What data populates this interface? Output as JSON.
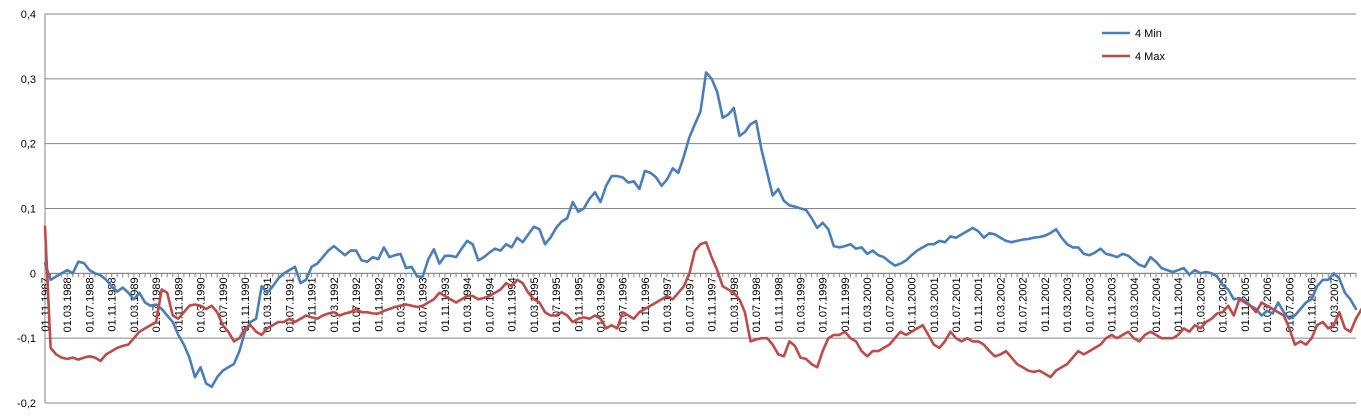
{
  "chart_data": {
    "type": "line",
    "title": "",
    "xlabel": "",
    "ylabel": "",
    "ylim": [
      -0.2,
      0.4
    ],
    "y_ticks": [
      -0.2,
      -0.1,
      0,
      0.1,
      0.2,
      0.3,
      0.4
    ],
    "y_tick_labels": [
      "-0,2",
      "-0,1",
      "0",
      "0,1",
      "0,2",
      "0,3",
      "0,4"
    ],
    "grid": "horizontal",
    "legend_position": "top-right",
    "x_tick_labels": [
      "01.11.1987",
      "01.03.1988",
      "01.07.1988",
      "01.11.1988",
      "01.03.1989",
      "01.07.1989",
      "01.11.1989",
      "01.03.1990",
      "01.07.1990",
      "01.11.1990",
      "01.03.1991",
      "01.07.1991",
      "01.11.1991",
      "01.03.1992",
      "01.07.1992",
      "01.11.1992",
      "01.03.1993",
      "01.07.1993",
      "01.11.1993",
      "01.03.1994",
      "01.07.1994",
      "01.11.1994",
      "01.03.1995",
      "01.07.1995",
      "01.11.1995",
      "01.03.1996",
      "01.07.1996",
      "01.11.1996",
      "01.03.1997",
      "01.07.1997",
      "01.11.1997",
      "01.03.1998",
      "01.07.1998",
      "01.11.1998",
      "01.03.1999",
      "01.07.1999",
      "01.11.1999",
      "01.03.2000",
      "01.07.2000",
      "01.11.2000",
      "01.03.2001",
      "01.07.2001",
      "01.11.2001",
      "01.03.2002",
      "01.07.2002",
      "01.11.2002",
      "01.03.2003",
      "01.07.2003",
      "01.11.2003",
      "01.03.2004",
      "01.07.2004",
      "01.11.2004",
      "01.03.2005",
      "01.07.2005",
      "01.11.2005",
      "01.03.2006",
      "01.07.2006",
      "01.11.2006",
      "01.03.2007"
    ],
    "x_month_labels": [
      "1987-11",
      "1988-03",
      "1988-07",
      "1988-11",
      "1989-03",
      "1989-07",
      "1989-11",
      "1990-03",
      "1990-07",
      "1990-11",
      "1991-03",
      "1991-07",
      "1991-11",
      "1992-03",
      "1992-07",
      "1992-11",
      "1993-03",
      "1993-07",
      "1993-11",
      "1994-03",
      "1994-07",
      "1994-11",
      "1995-03",
      "1995-07",
      "1995-11",
      "1996-03",
      "1996-07",
      "1996-11",
      "1997-03",
      "1997-07",
      "1997-11",
      "1998-03",
      "1998-07",
      "1998-11",
      "1999-03",
      "1999-07",
      "1999-11",
      "2000-03",
      "2000-07",
      "2000-11",
      "2001-03",
      "2001-07",
      "2001-11",
      "2002-03",
      "2002-07",
      "2002-11",
      "2003-03",
      "2003-07",
      "2003-11",
      "2004-03",
      "2004-07",
      "2004-11",
      "2005-03",
      "2005-07",
      "2005-11",
      "2006-03",
      "2006-07",
      "2006-11",
      "2007-03"
    ],
    "series": [
      {
        "name": "4 Min",
        "color": "#4a7ebb",
        "values": [
          0.015,
          -0.01,
          -0.005,
          0.0,
          0.005,
          0.0,
          0.018,
          0.016,
          0.005,
          0.0,
          -0.003,
          -0.01,
          -0.02,
          -0.028,
          -0.022,
          -0.03,
          -0.04,
          -0.03,
          -0.045,
          -0.05,
          -0.048,
          -0.055,
          -0.065,
          -0.075,
          -0.095,
          -0.11,
          -0.13,
          -0.16,
          -0.145,
          -0.17,
          -0.175,
          -0.16,
          -0.15,
          -0.145,
          -0.14,
          -0.12,
          -0.09,
          -0.075,
          -0.07,
          -0.02,
          -0.03,
          -0.02,
          -0.008,
          0.0,
          0.005,
          0.01,
          -0.015,
          -0.01,
          0.01,
          0.015,
          0.025,
          0.035,
          0.042,
          0.035,
          0.028,
          0.035,
          0.035,
          0.02,
          0.018,
          0.025,
          0.022,
          0.04,
          0.025,
          0.028,
          0.03,
          0.008,
          0.01,
          -0.005,
          -0.005,
          0.022,
          0.037,
          0.015,
          0.027,
          0.027,
          0.025,
          0.038,
          0.05,
          0.045,
          0.02,
          0.025,
          0.032,
          0.038,
          0.035,
          0.045,
          0.04,
          0.055,
          0.048,
          0.06,
          0.072,
          0.068,
          0.045,
          0.055,
          0.07,
          0.08,
          0.085,
          0.11,
          0.095,
          0.1,
          0.115,
          0.125,
          0.11,
          0.135,
          0.15,
          0.15,
          0.148,
          0.14,
          0.142,
          0.13,
          0.158,
          0.155,
          0.148,
          0.135,
          0.145,
          0.162,
          0.155,
          0.18,
          0.21,
          0.23,
          0.25,
          0.31,
          0.3,
          0.28,
          0.24,
          0.245,
          0.255,
          0.212,
          0.218,
          0.23,
          0.235,
          0.19,
          0.155,
          0.12,
          0.13,
          0.112,
          0.105,
          0.103,
          0.1,
          0.098,
          0.085,
          0.07,
          0.078,
          0.068,
          0.042,
          0.04,
          0.042,
          0.045,
          0.038,
          0.04,
          0.03,
          0.035,
          0.028,
          0.025,
          0.018,
          0.012,
          0.015,
          0.02,
          0.028,
          0.035,
          0.04,
          0.045,
          0.045,
          0.05,
          0.048,
          0.057,
          0.055,
          0.06,
          0.065,
          0.07,
          0.065,
          0.055,
          0.062,
          0.06,
          0.055,
          0.05,
          0.048,
          0.05,
          0.052,
          0.053,
          0.055,
          0.056,
          0.058,
          0.062,
          0.068,
          0.055,
          0.045,
          0.04,
          0.04,
          0.03,
          0.028,
          0.032,
          0.038,
          0.03,
          0.028,
          0.025,
          0.03,
          0.027,
          0.02,
          0.013,
          0.01,
          0.025,
          0.018,
          0.008,
          0.005,
          0.002,
          0.005,
          0.008,
          -0.002,
          0.005,
          0.0,
          0.002,
          0.0,
          -0.005,
          -0.018,
          -0.025,
          -0.04,
          -0.038,
          -0.042,
          -0.05,
          -0.055,
          -0.065,
          -0.058,
          -0.062,
          -0.045,
          -0.06,
          -0.07,
          -0.065,
          -0.055,
          -0.045,
          -0.04,
          -0.02,
          -0.01,
          -0.01,
          0.0,
          -0.008,
          -0.03,
          -0.04,
          -0.055
        ]
      },
      {
        "name": "4 Max",
        "color": "#be4b48",
        "values": [
          0.072,
          -0.115,
          -0.125,
          -0.13,
          -0.132,
          -0.13,
          -0.133,
          -0.13,
          -0.128,
          -0.13,
          -0.135,
          -0.125,
          -0.12,
          -0.115,
          -0.112,
          -0.11,
          -0.1,
          -0.09,
          -0.085,
          -0.08,
          -0.075,
          -0.025,
          -0.03,
          -0.065,
          -0.07,
          -0.06,
          -0.05,
          -0.048,
          -0.05,
          -0.055,
          -0.05,
          -0.06,
          -0.08,
          -0.09,
          -0.105,
          -0.1,
          -0.085,
          -0.08,
          -0.09,
          -0.095,
          -0.085,
          -0.08,
          -0.075,
          -0.075,
          -0.07,
          -0.075,
          -0.07,
          -0.065,
          -0.068,
          -0.07,
          -0.065,
          -0.062,
          -0.06,
          -0.065,
          -0.062,
          -0.06,
          -0.055,
          -0.06,
          -0.06,
          -0.062,
          -0.062,
          -0.058,
          -0.055,
          -0.052,
          -0.05,
          -0.048,
          -0.05,
          -0.052,
          -0.05,
          -0.045,
          -0.04,
          -0.03,
          -0.035,
          -0.04,
          -0.045,
          -0.04,
          -0.035,
          -0.035,
          -0.04,
          -0.038,
          -0.035,
          -0.03,
          -0.025,
          -0.015,
          -0.02,
          -0.01,
          -0.015,
          -0.03,
          -0.04,
          -0.045,
          -0.06,
          -0.065,
          -0.065,
          -0.06,
          -0.065,
          -0.075,
          -0.07,
          -0.068,
          -0.07,
          -0.065,
          -0.07,
          -0.085,
          -0.08,
          -0.085,
          -0.06,
          -0.065,
          -0.07,
          -0.06,
          -0.055,
          -0.05,
          -0.045,
          -0.04,
          -0.035,
          -0.04,
          -0.03,
          -0.02,
          0.0,
          0.035,
          0.045,
          0.048,
          0.025,
          0.005,
          -0.02,
          -0.025,
          -0.03,
          -0.04,
          -0.06,
          -0.105,
          -0.102,
          -0.1,
          -0.1,
          -0.11,
          -0.125,
          -0.128,
          -0.105,
          -0.112,
          -0.13,
          -0.132,
          -0.14,
          -0.145,
          -0.12,
          -0.1,
          -0.095,
          -0.095,
          -0.09,
          -0.1,
          -0.105,
          -0.12,
          -0.128,
          -0.12,
          -0.12,
          -0.115,
          -0.11,
          -0.1,
          -0.09,
          -0.095,
          -0.09,
          -0.085,
          -0.08,
          -0.095,
          -0.11,
          -0.115,
          -0.105,
          -0.09,
          -0.1,
          -0.105,
          -0.1,
          -0.105,
          -0.105,
          -0.11,
          -0.12,
          -0.128,
          -0.125,
          -0.12,
          -0.13,
          -0.14,
          -0.145,
          -0.15,
          -0.152,
          -0.15,
          -0.155,
          -0.16,
          -0.15,
          -0.145,
          -0.14,
          -0.13,
          -0.12,
          -0.125,
          -0.12,
          -0.115,
          -0.11,
          -0.1,
          -0.095,
          -0.1,
          -0.095,
          -0.09,
          -0.1,
          -0.105,
          -0.095,
          -0.09,
          -0.095,
          -0.1,
          -0.1,
          -0.1,
          -0.095,
          -0.085,
          -0.09,
          -0.08,
          -0.085,
          -0.075,
          -0.07,
          -0.062,
          -0.06,
          -0.05,
          -0.065,
          -0.04,
          -0.045,
          -0.05,
          -0.06,
          -0.045,
          -0.05,
          -0.055,
          -0.06,
          -0.065,
          -0.085,
          -0.11,
          -0.105,
          -0.11,
          -0.1,
          -0.08,
          -0.075,
          -0.085,
          -0.08,
          -0.06,
          -0.085,
          -0.09,
          -0.07,
          -0.055
        ]
      }
    ]
  }
}
